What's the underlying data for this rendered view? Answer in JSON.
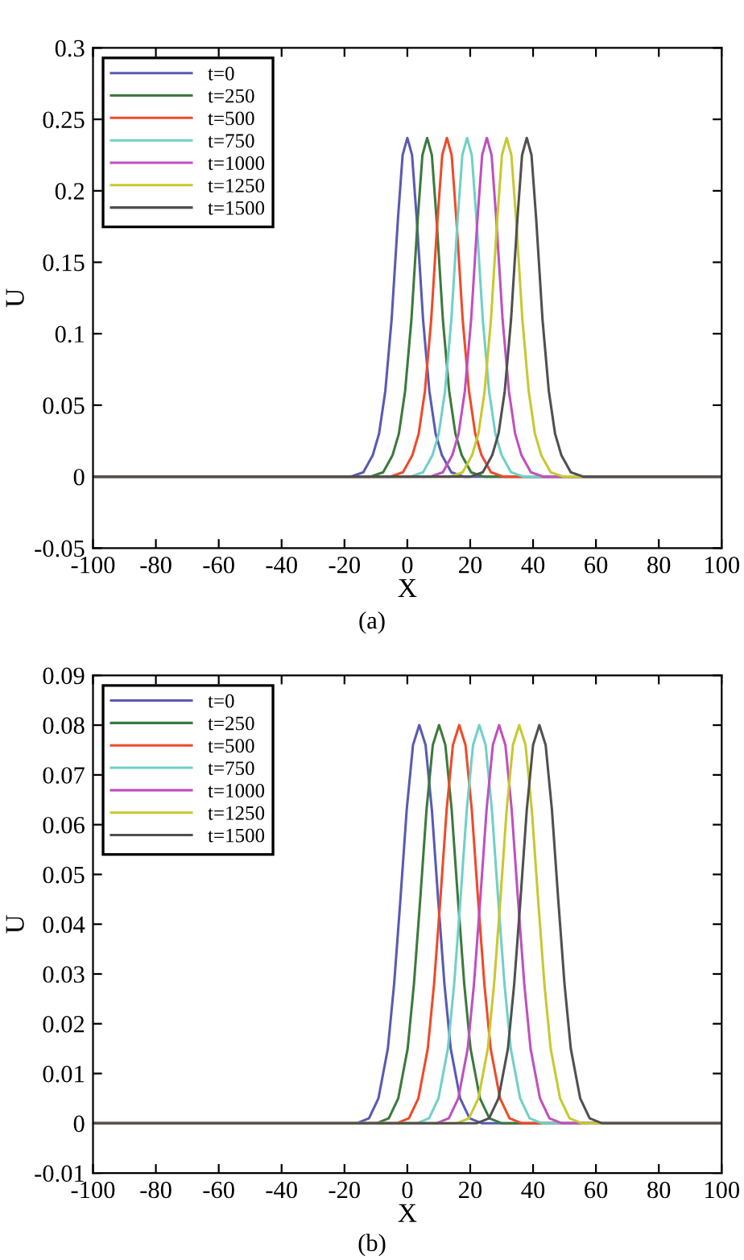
{
  "chart_data": [
    {
      "type": "line",
      "xlabel": "X",
      "ylabel": "U",
      "xlim": [
        -100,
        100
      ],
      "ylim": [
        -0.05,
        0.3
      ],
      "xticks": [
        -100,
        -80,
        -60,
        -40,
        -20,
        0,
        20,
        40,
        60,
        80,
        100
      ],
      "yticks": [
        -0.05,
        0,
        0.05,
        0.1,
        0.15,
        0.2,
        0.25,
        0.3
      ],
      "grid": false,
      "legend": "top left",
      "annotations": [
        "(a)"
      ],
      "series": [
        {
          "name": "t=0",
          "color": "#5a5ab4",
          "x": [
            -100,
            -18,
            -14,
            -11,
            -9,
            -7,
            -5,
            -3,
            -1.5,
            0,
            1.5,
            3,
            5,
            7,
            9,
            11,
            14,
            18,
            100
          ],
          "values": [
            0,
            0,
            0.003,
            0.015,
            0.03,
            0.06,
            0.11,
            0.18,
            0.225,
            0.237,
            0.225,
            0.18,
            0.11,
            0.06,
            0.03,
            0.015,
            0.003,
            0,
            0
          ]
        },
        {
          "name": "t=250",
          "color": "#3c7a3c",
          "x": [
            -100,
            -11.7,
            -7.7,
            -4.7,
            -2.7,
            -0.7,
            1.3,
            3.3,
            4.8,
            6.3,
            7.8,
            9.3,
            11.3,
            13.3,
            15.3,
            17.3,
            20.3,
            24.3,
            100
          ],
          "values": [
            0,
            0,
            0.003,
            0.015,
            0.03,
            0.06,
            0.11,
            0.18,
            0.225,
            0.237,
            0.225,
            0.18,
            0.11,
            0.06,
            0.03,
            0.015,
            0.003,
            0,
            0
          ]
        },
        {
          "name": "t=500",
          "color": "#f04a2a",
          "x": [
            -100,
            -5.4,
            -1.4,
            1.6,
            3.6,
            5.6,
            7.6,
            9.6,
            11.1,
            12.6,
            14.1,
            15.6,
            17.6,
            19.6,
            21.6,
            23.6,
            26.6,
            30.6,
            100
          ],
          "values": [
            0,
            0,
            0.003,
            0.015,
            0.03,
            0.06,
            0.11,
            0.18,
            0.225,
            0.237,
            0.225,
            0.18,
            0.11,
            0.06,
            0.03,
            0.015,
            0.003,
            0,
            0
          ]
        },
        {
          "name": "t=750",
          "color": "#70d0c8",
          "x": [
            -100,
            1,
            5,
            8,
            10,
            12,
            14,
            16,
            17.5,
            19,
            20.5,
            22,
            24,
            26,
            28,
            30,
            33,
            37,
            100
          ],
          "values": [
            0,
            0,
            0.003,
            0.015,
            0.03,
            0.06,
            0.11,
            0.18,
            0.225,
            0.237,
            0.225,
            0.18,
            0.11,
            0.06,
            0.03,
            0.015,
            0.003,
            0,
            0
          ]
        },
        {
          "name": "t=1000",
          "color": "#c050c0",
          "x": [
            -100,
            7.3,
            11.3,
            14.3,
            16.3,
            18.3,
            20.3,
            22.3,
            23.8,
            25.3,
            26.8,
            28.3,
            30.3,
            32.3,
            34.3,
            36.3,
            39.3,
            43.3,
            100
          ],
          "values": [
            0,
            0,
            0.003,
            0.015,
            0.03,
            0.06,
            0.11,
            0.18,
            0.225,
            0.237,
            0.225,
            0.18,
            0.11,
            0.06,
            0.03,
            0.015,
            0.003,
            0,
            0
          ]
        },
        {
          "name": "t=1250",
          "color": "#c8c830",
          "x": [
            -100,
            13.6,
            17.6,
            20.6,
            22.6,
            24.6,
            26.6,
            28.6,
            30.1,
            31.6,
            33.1,
            34.6,
            36.6,
            38.6,
            40.6,
            42.6,
            45.6,
            49.6,
            100
          ],
          "values": [
            0,
            0,
            0.003,
            0.015,
            0.03,
            0.06,
            0.11,
            0.18,
            0.225,
            0.237,
            0.225,
            0.18,
            0.11,
            0.06,
            0.03,
            0.015,
            0.003,
            0,
            0
          ]
        },
        {
          "name": "t=1500",
          "color": "#505050",
          "x": [
            -100,
            20,
            24,
            27,
            29,
            31,
            33,
            35,
            36.5,
            38,
            39.5,
            41,
            43,
            45,
            47,
            49,
            52,
            56,
            100
          ],
          "values": [
            0,
            0,
            0.003,
            0.015,
            0.03,
            0.06,
            0.11,
            0.18,
            0.225,
            0.237,
            0.225,
            0.18,
            0.11,
            0.06,
            0.03,
            0.015,
            0.003,
            0,
            0
          ]
        }
      ]
    },
    {
      "type": "line",
      "xlabel": "X",
      "ylabel": "U",
      "xlim": [
        -100,
        100
      ],
      "ylim": [
        -0.01,
        0.09
      ],
      "xticks": [
        -100,
        -80,
        -60,
        -40,
        -20,
        0,
        20,
        40,
        60,
        80,
        100
      ],
      "yticks": [
        -0.01,
        0,
        0.01,
        0.02,
        0.03,
        0.04,
        0.05,
        0.06,
        0.07,
        0.08,
        0.09
      ],
      "grid": false,
      "legend": "top left",
      "annotations": [
        "(b)"
      ],
      "series": [
        {
          "name": "t=0",
          "color": "#5a5ab4",
          "x": [
            -100,
            -16.2,
            -12.2,
            -9.2,
            -6.2,
            -4.2,
            -2.2,
            -0.2,
            1.8,
            3.8,
            5.8,
            7.8,
            9.8,
            11.8,
            13.8,
            16.8,
            19.8,
            23.8,
            100
          ],
          "values": [
            0,
            0,
            0.001,
            0.005,
            0.015,
            0.028,
            0.045,
            0.063,
            0.076,
            0.08,
            0.076,
            0.063,
            0.045,
            0.028,
            0.015,
            0.005,
            0.001,
            0,
            0
          ]
        },
        {
          "name": "t=250",
          "color": "#3c7a3c",
          "x": [
            -100,
            -9.9,
            -5.9,
            -2.9,
            0.1,
            2.1,
            4.1,
            6.1,
            8.1,
            10.1,
            12.1,
            14.1,
            16.1,
            18.1,
            20.1,
            23.1,
            26.1,
            30.1,
            100
          ],
          "values": [
            0,
            0,
            0.001,
            0.005,
            0.015,
            0.028,
            0.045,
            0.063,
            0.076,
            0.08,
            0.076,
            0.063,
            0.045,
            0.028,
            0.015,
            0.005,
            0.001,
            0,
            0
          ]
        },
        {
          "name": "t=500",
          "color": "#f04a2a",
          "x": [
            -100,
            -3.5,
            0.5,
            3.5,
            6.5,
            8.5,
            10.5,
            12.5,
            14.5,
            16.5,
            18.5,
            20.5,
            22.5,
            24.5,
            26.5,
            29.5,
            32.5,
            36.5,
            100
          ],
          "values": [
            0,
            0,
            0.001,
            0.005,
            0.015,
            0.028,
            0.045,
            0.063,
            0.076,
            0.08,
            0.076,
            0.063,
            0.045,
            0.028,
            0.015,
            0.005,
            0.001,
            0,
            0
          ]
        },
        {
          "name": "t=750",
          "color": "#70d0c8",
          "x": [
            -100,
            2.9,
            6.9,
            9.9,
            12.9,
            14.9,
            16.9,
            18.9,
            20.9,
            22.9,
            24.9,
            26.9,
            28.9,
            30.9,
            32.9,
            35.9,
            38.9,
            42.9,
            100
          ],
          "values": [
            0,
            0,
            0.001,
            0.005,
            0.015,
            0.028,
            0.045,
            0.063,
            0.076,
            0.08,
            0.076,
            0.063,
            0.045,
            0.028,
            0.015,
            0.005,
            0.001,
            0,
            0
          ]
        },
        {
          "name": "t=1000",
          "color": "#c050c0",
          "x": [
            -100,
            9.2,
            13.2,
            16.2,
            19.2,
            21.2,
            23.2,
            25.2,
            27.2,
            29.2,
            31.2,
            33.2,
            35.2,
            37.2,
            39.2,
            42.2,
            45.2,
            49.2,
            100
          ],
          "values": [
            0,
            0,
            0.001,
            0.005,
            0.015,
            0.028,
            0.045,
            0.063,
            0.076,
            0.08,
            0.076,
            0.063,
            0.045,
            0.028,
            0.015,
            0.005,
            0.001,
            0,
            0
          ]
        },
        {
          "name": "t=1250",
          "color": "#c8c830",
          "x": [
            -100,
            15.6,
            19.6,
            22.6,
            25.6,
            27.6,
            29.6,
            31.6,
            33.6,
            35.6,
            37.6,
            39.6,
            41.6,
            43.6,
            45.6,
            48.6,
            51.6,
            55.6,
            100
          ],
          "values": [
            0,
            0,
            0.001,
            0.005,
            0.015,
            0.028,
            0.045,
            0.063,
            0.076,
            0.08,
            0.076,
            0.063,
            0.045,
            0.028,
            0.015,
            0.005,
            0.001,
            0,
            0
          ]
        },
        {
          "name": "t=1500",
          "color": "#505050",
          "x": [
            -100,
            22,
            26,
            29,
            32,
            34,
            36,
            38,
            40,
            42,
            44,
            46,
            48,
            50,
            52,
            55,
            58,
            62,
            100
          ],
          "values": [
            0,
            0,
            0.001,
            0.005,
            0.015,
            0.028,
            0.045,
            0.063,
            0.076,
            0.08,
            0.076,
            0.063,
            0.045,
            0.028,
            0.015,
            0.005,
            0.001,
            0,
            0
          ]
        }
      ]
    }
  ]
}
